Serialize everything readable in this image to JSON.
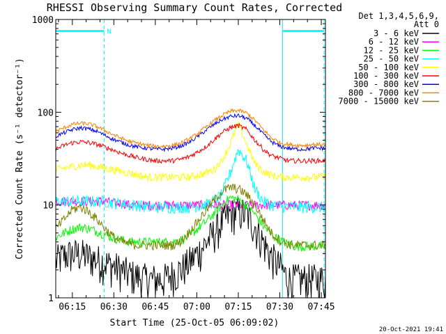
{
  "chart_data": {
    "type": "line",
    "title": "RHESSI Observing Summary Count Rates, Corrected",
    "xlabel": "Start Time (25-Oct-05 06:09:02)",
    "ylabel": "Corrected Count Rate (s⁻¹ detector⁻¹)",
    "y_scale": "log",
    "ylim": [
      1,
      1000
    ],
    "xlim_minutes_after_0600": [
      9.0,
      106.5
    ],
    "x_tick_labels": [
      "06:15",
      "06:30",
      "06:45",
      "07:00",
      "07:15",
      "07:30",
      "07:45"
    ],
    "x_tick_minutes_after_0600": [
      15,
      30,
      45,
      60,
      75,
      90,
      105
    ],
    "y_tick_labels": [
      "1",
      "10",
      "100",
      "1000"
    ],
    "y_tick_values": [
      1,
      10,
      100,
      1000
    ],
    "legend_title": [
      "Det 1,3,4,5,6,9,",
      "Att 0"
    ],
    "legend_placement": "right",
    "footer_date": "20-Oct-2021 19:41",
    "night_marker": "N",
    "flag_intervals_minutes": [
      [
        9.0,
        26.5
      ],
      [
        91.0,
        106.0
      ]
    ],
    "dashed_vlines_minutes": [
      26.5,
      106.0
    ],
    "solid_vlines_minutes": [
      9.0,
      91.0
    ],
    "flag_level": 750,
    "sample_minutes": [
      9,
      12,
      15,
      18,
      21,
      24,
      27,
      30,
      33,
      36,
      39,
      42,
      45,
      48,
      51,
      54,
      57,
      60,
      63,
      66,
      69,
      72,
      75,
      78,
      81,
      84,
      87,
      90,
      93,
      96,
      99,
      102,
      106
    ],
    "series": [
      {
        "name": "3 - 6 keV",
        "color": "#000000",
        "values": [
          2.5,
          2.9,
          3.0,
          3.0,
          2.8,
          2.6,
          2.4,
          2.2,
          2.0,
          1.8,
          1.7,
          1.6,
          1.6,
          1.6,
          1.8,
          2.0,
          2.4,
          3.0,
          3.8,
          5.0,
          6.5,
          8.0,
          8.6,
          8.0,
          6.0,
          4.0,
          2.8,
          2.2,
          1.6,
          1.6,
          1.6,
          1.6,
          1.6
        ]
      },
      {
        "name": "6 - 12 keV",
        "color": "#ff00ff",
        "values": [
          11,
          11,
          11,
          11,
          11,
          11,
          11,
          10.5,
          10.5,
          10,
          10,
          10,
          10,
          10,
          10,
          10,
          10,
          10,
          10,
          10,
          10,
          10,
          10,
          10,
          10,
          10,
          10,
          10,
          10,
          10,
          10,
          10,
          10
        ]
      },
      {
        "name": "12 - 25 keV",
        "color": "#00ff00",
        "values": [
          4.5,
          5.0,
          5.5,
          5.8,
          5.6,
          5.2,
          4.8,
          4.4,
          4.2,
          4.0,
          4.0,
          4.0,
          4.0,
          4.0,
          4.0,
          4.2,
          4.6,
          5.5,
          6.5,
          8.0,
          10.0,
          12.0,
          11.5,
          10.0,
          8.0,
          6.0,
          4.8,
          4.2,
          3.8,
          3.6,
          3.6,
          3.6,
          3.6
        ]
      },
      {
        "name": "25 - 50 keV",
        "color": "#00ffff",
        "values": [
          11,
          11,
          11,
          11,
          11,
          11,
          11,
          10.5,
          10.5,
          10,
          10,
          9.5,
          9.5,
          9.5,
          9.5,
          9.5,
          9.5,
          9.8,
          10,
          11,
          13,
          22,
          40,
          30,
          15,
          11,
          10,
          9.8,
          9.6,
          9.5,
          9.5,
          9.5,
          9.5
        ]
      },
      {
        "name": "50 - 100 keV",
        "color": "#ffff00",
        "values": [
          24,
          25,
          26,
          27,
          27,
          26,
          25,
          24,
          23,
          22,
          21,
          20,
          20,
          20,
          20,
          20,
          20,
          21,
          22,
          24,
          30,
          45,
          75,
          45,
          28,
          23,
          21,
          20,
          20,
          20,
          20,
          20,
          20
        ]
      },
      {
        "name": "100 - 300 keV",
        "color": "#ff0000",
        "values": [
          40,
          44,
          47,
          48,
          47,
          45,
          42,
          39,
          36,
          34,
          32,
          31,
          30,
          30,
          30,
          31,
          33,
          37,
          42,
          50,
          60,
          68,
          72,
          65,
          50,
          40,
          34,
          32,
          30,
          30,
          30,
          30,
          30
        ]
      },
      {
        "name": "300 - 800 keV",
        "color": "#0000ff",
        "values": [
          55,
          60,
          65,
          68,
          66,
          62,
          56,
          51,
          47,
          44,
          42,
          41,
          40,
          40,
          41,
          43,
          47,
          54,
          63,
          73,
          83,
          90,
          92,
          86,
          72,
          58,
          48,
          43,
          41,
          40,
          40,
          41,
          41
        ]
      },
      {
        "name": "800 - 7000 keV",
        "color": "#ff8000",
        "values": [
          62,
          68,
          74,
          76,
          75,
          70,
          63,
          57,
          52,
          48,
          46,
          44,
          43,
          43,
          44,
          46,
          51,
          58,
          68,
          80,
          92,
          102,
          105,
          98,
          82,
          65,
          53,
          47,
          45,
          44,
          44,
          45,
          45
        ]
      },
      {
        "name": "7000 - 15000 keV",
        "color": "#808000",
        "values": [
          5.5,
          7.0,
          9.0,
          9.5,
          8.5,
          7.0,
          5.5,
          4.5,
          4.0,
          3.8,
          3.7,
          3.7,
          3.7,
          3.7,
          3.7,
          4.0,
          5.0,
          6.5,
          8.5,
          11,
          14,
          15.5,
          15,
          13,
          10,
          7,
          5,
          4.2,
          3.8,
          3.7,
          3.7,
          3.7,
          3.7
        ]
      }
    ]
  }
}
